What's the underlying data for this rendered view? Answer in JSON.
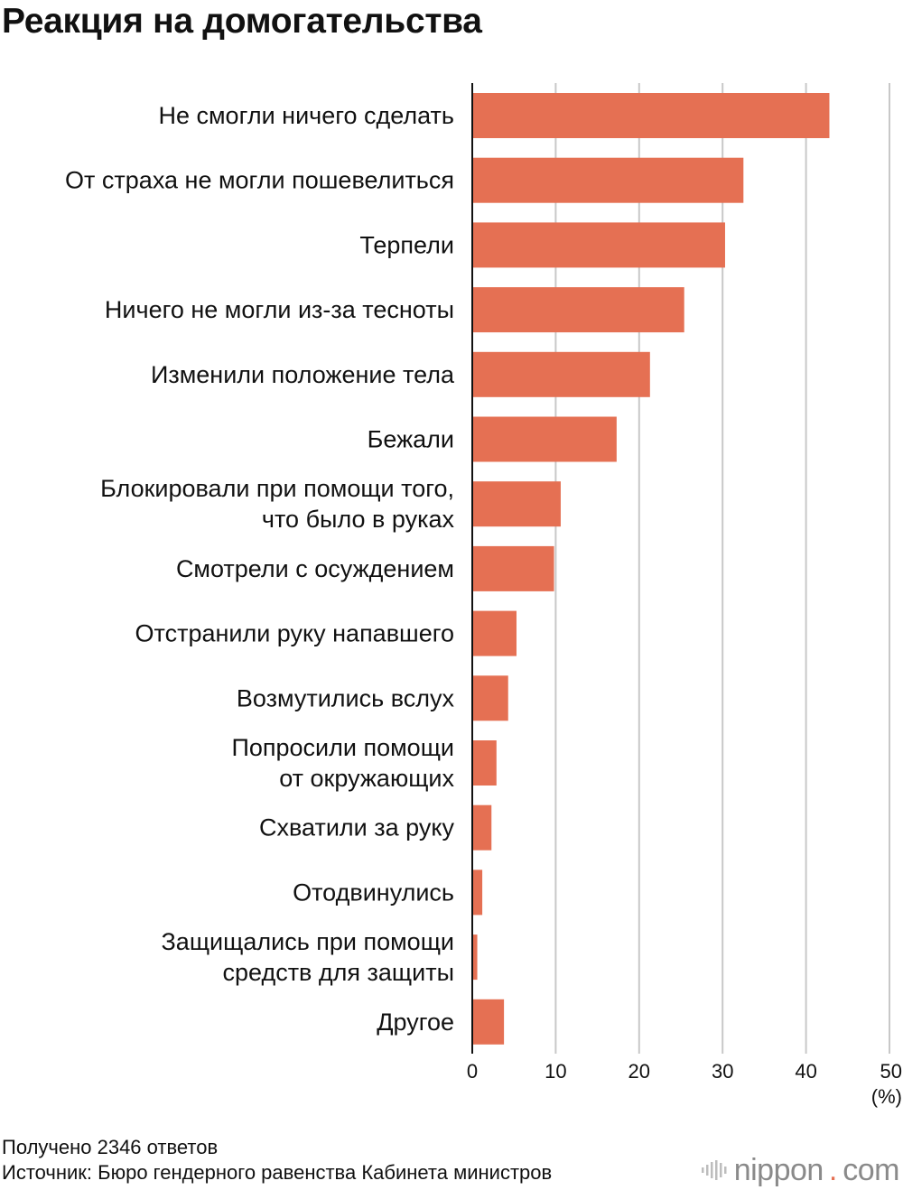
{
  "chart_data": {
    "type": "bar",
    "orientation": "horizontal",
    "title": "Реакция на домогательства",
    "categories": [
      [
        "Не смогли ничего сделать"
      ],
      [
        "От страха не могли пошевелиться"
      ],
      [
        "Терпели"
      ],
      [
        "Ничего не могли из-за тесноты"
      ],
      [
        "Изменили положение тела"
      ],
      [
        "Бежали"
      ],
      [
        "Блокировали при помощи того,",
        "что было в руках"
      ],
      [
        "Смотрели с осуждением"
      ],
      [
        "Отстранили руку напавшего"
      ],
      [
        "Возмутились вслух"
      ],
      [
        "Попросили помощи",
        "от окружающих"
      ],
      [
        "Схватили за руку"
      ],
      [
        "Отодвинулись"
      ],
      [
        "Защищались при помощи",
        "средств для защиты"
      ],
      [
        "Другое"
      ]
    ],
    "values": [
      42.8,
      32.5,
      30.3,
      25.4,
      21.3,
      17.3,
      10.6,
      9.8,
      5.3,
      4.3,
      2.9,
      2.3,
      1.2,
      0.6,
      3.8
    ],
    "xlim": [
      0,
      50
    ],
    "xticks": [
      0,
      10,
      20,
      30,
      40,
      50
    ],
    "xlabel": "(%)",
    "grid": true,
    "bar_color": "#e57053",
    "grid_color": "#c8c8c8"
  },
  "footer": {
    "note": "Получено 2346 ответов",
    "source": "Источник: Бюро гендерного равенства Кабинета министров"
  },
  "logo": {
    "name": "nippon",
    "dot": ".",
    "tld": "com",
    "accent_color": "#e57053"
  }
}
